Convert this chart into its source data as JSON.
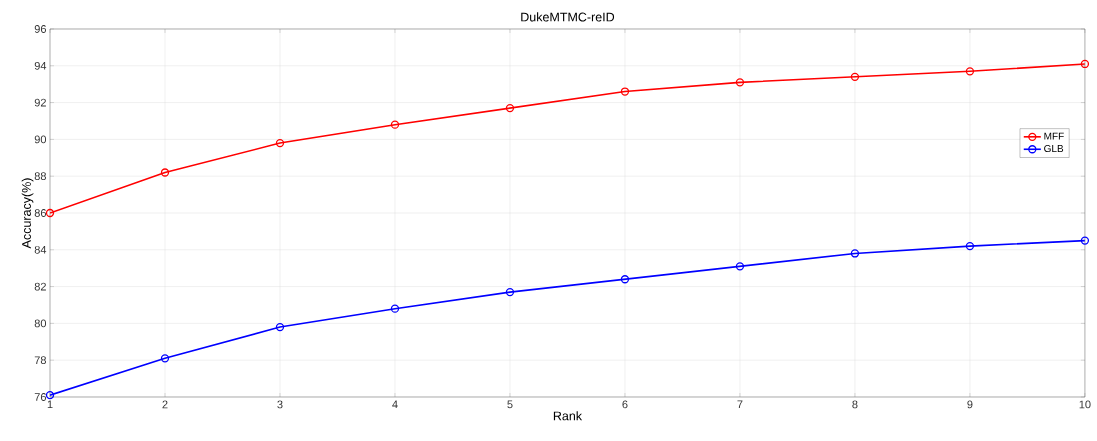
{
  "chart_data": {
    "type": "line",
    "title": "DukeMTMC-reID",
    "xlabel": "Rank",
    "ylabel": "Accuracy(%)",
    "x": [
      1,
      2,
      3,
      4,
      5,
      6,
      7,
      8,
      9,
      10
    ],
    "series": [
      {
        "name": "MFF",
        "color": "#ff0000",
        "values": [
          86.0,
          88.2,
          89.8,
          90.8,
          91.7,
          92.6,
          93.1,
          93.4,
          93.7,
          94.1
        ]
      },
      {
        "name": "GLB",
        "color": "#0000ff",
        "values": [
          76.1,
          78.1,
          79.8,
          80.8,
          81.7,
          82.4,
          83.1,
          83.8,
          84.2,
          84.5
        ]
      }
    ],
    "xlim": [
      1,
      10
    ],
    "ylim": [
      76,
      96
    ],
    "xticks": [
      1,
      2,
      3,
      4,
      5,
      6,
      7,
      8,
      9,
      10
    ],
    "yticks": [
      76,
      78,
      80,
      82,
      84,
      86,
      88,
      90,
      92,
      94,
      96
    ],
    "grid": true,
    "legend": "right",
    "marker": "circle",
    "line_style": "solid"
  }
}
